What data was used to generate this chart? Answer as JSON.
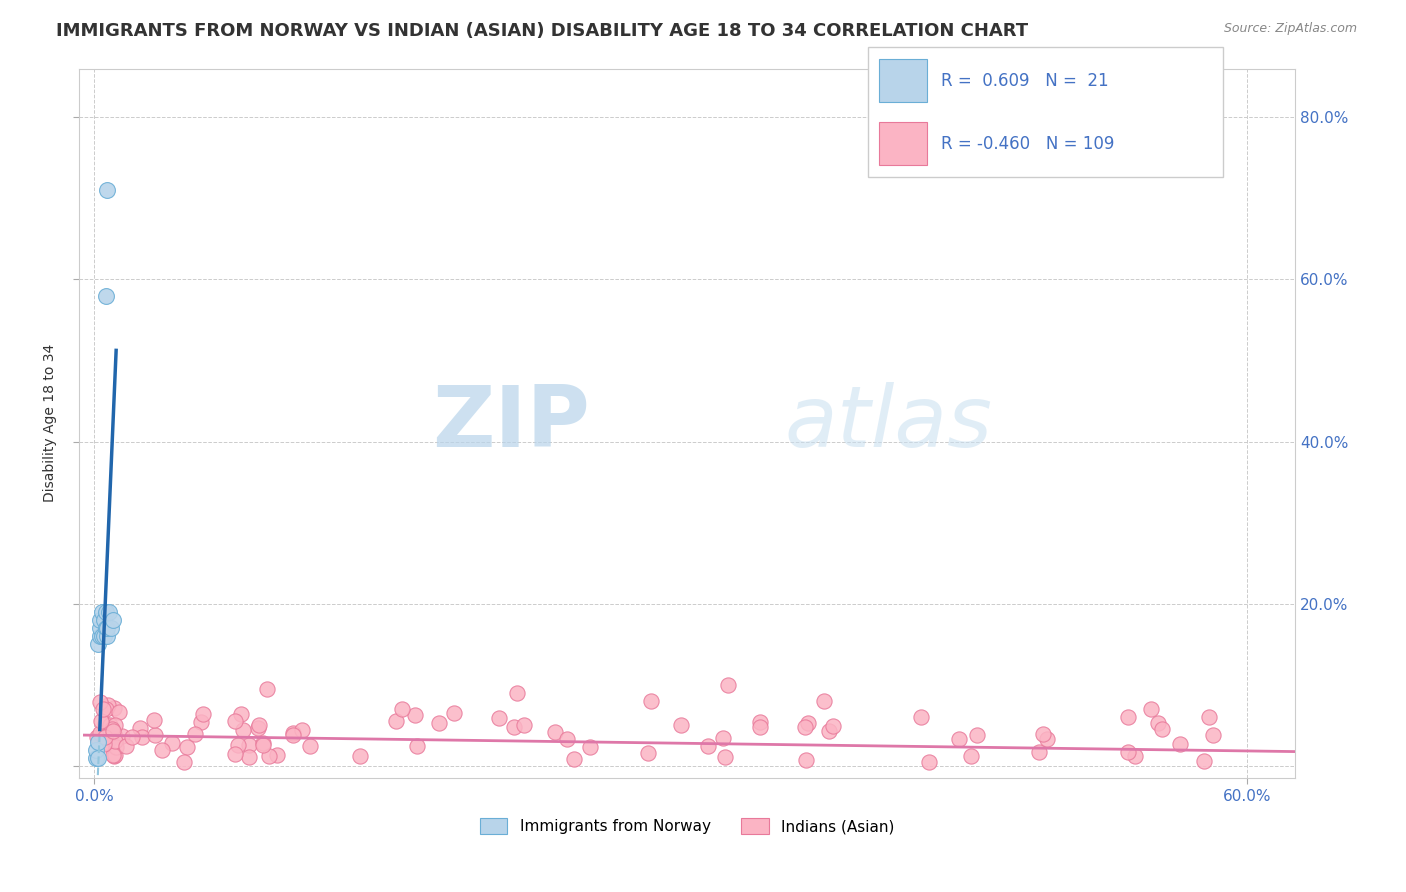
{
  "title": "IMMIGRANTS FROM NORWAY VS INDIAN (ASIAN) DISABILITY AGE 18 TO 34 CORRELATION CHART",
  "source": "Source: ZipAtlas.com",
  "ylabel_label": "Disability Age 18 to 34",
  "x_ticks": [
    0.0,
    0.6
  ],
  "x_tick_labels": [
    "0.0%",
    "60.0%"
  ],
  "y_ticks": [
    0.0,
    0.2,
    0.4,
    0.6,
    0.8
  ],
  "y_tick_labels_right": [
    "",
    "20.0%",
    "40.0%",
    "60.0%",
    "80.0%"
  ],
  "xlim": [
    -0.008,
    0.625
  ],
  "ylim": [
    -0.015,
    0.86
  ],
  "norway_color": "#b8d4ea",
  "norway_edge_color": "#6aaed6",
  "norway_line_color": "#2166ac",
  "norway_dashed_color": "#92c5de",
  "indian_color": "#fbb4c4",
  "indian_edge_color": "#e8799a",
  "indian_line_color": "#de77a8",
  "legend_norway_R": "0.609",
  "legend_norway_N": "21",
  "legend_indian_R": "-0.460",
  "legend_indian_N": "109",
  "legend_label_norway": "Immigrants from Norway",
  "legend_label_indian": "Indians (Asian)",
  "watermark_zip": "ZIP",
  "watermark_atlas": "atlas",
  "background_color": "#ffffff",
  "plot_bg_color": "#ffffff",
  "grid_color": "#cccccc",
  "title_color": "#333333",
  "axis_label_color": "#333333",
  "tick_color": "#4472c4",
  "legend_r_color": "#4472c4",
  "title_fontsize": 13,
  "axis_fontsize": 10,
  "tick_fontsize": 11
}
